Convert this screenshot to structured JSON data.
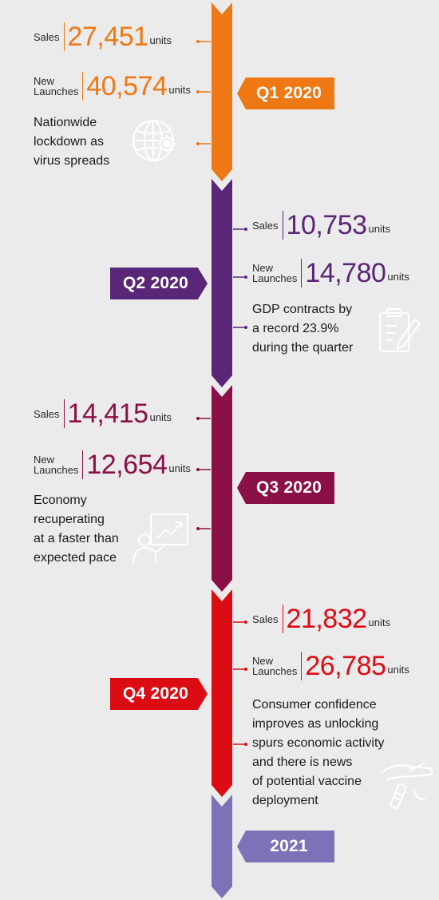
{
  "colors": {
    "q1": "#ed7814",
    "q2": "#5a2678",
    "q3": "#8c1048",
    "q4": "#dc0c14",
    "y2021": "#7b72b8",
    "background": "#ebebeb"
  },
  "quarters": [
    {
      "period": "Q1 2020",
      "sales_label": "Sales",
      "sales_value": "27,451",
      "sales_unit": "units",
      "launch_label_1": "New",
      "launch_label_2": "Launches",
      "launch_value": "40,574",
      "launch_unit": "units",
      "note": [
        "Nationwide",
        "lockdown as",
        "virus spreads"
      ],
      "icon": "globe-virus-icon"
    },
    {
      "period": "Q2 2020",
      "sales_label": "Sales",
      "sales_value": "10,753",
      "sales_unit": "units",
      "launch_label_1": "New",
      "launch_label_2": "Launches",
      "launch_value": "14,780",
      "launch_unit": "units",
      "note": [
        "GDP contracts by",
        "a record 23.9%",
        "during the quarter"
      ],
      "icon": "clipboard-icon"
    },
    {
      "period": "Q3 2020",
      "sales_label": "Sales",
      "sales_value": "14,415",
      "sales_unit": "units",
      "launch_label_1": "New",
      "launch_label_2": "Launches",
      "launch_value": "12,654",
      "launch_unit": "units",
      "note": [
        "Economy",
        "recuperating",
        "at a faster than",
        "expected pace"
      ],
      "icon": "presentation-growth-icon"
    },
    {
      "period": "Q4 2020",
      "sales_label": "Sales",
      "sales_value": "21,832",
      "sales_unit": "units",
      "launch_label_1": "New",
      "launch_label_2": "Launches",
      "launch_value": "26,785",
      "launch_unit": "units",
      "note": [
        "Consumer confidence",
        "improves as unlocking",
        "spurs economic activity",
        "and there is news",
        "of potential vaccine",
        "deployment"
      ],
      "icon": "vaccine-hand-icon"
    }
  ],
  "final": {
    "period": "2021"
  }
}
